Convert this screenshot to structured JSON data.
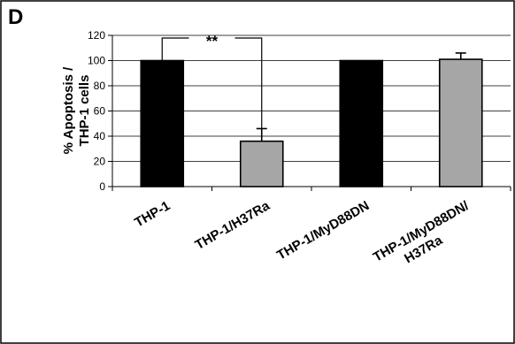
{
  "panel_label": "D",
  "chart_data": {
    "type": "bar",
    "categories": [
      "THP-1",
      "THP-1/H37Ra",
      "THP-1/MyD88DN",
      [
        "THP-1/MyD88DN/",
        "H37Ra"
      ]
    ],
    "values": [
      100,
      36,
      100,
      101
    ],
    "errors": [
      0,
      10,
      0,
      5
    ],
    "bar_colors": [
      "#000000",
      "#a6a6a6",
      "#000000",
      "#a6a6a6"
    ],
    "ylabel_lines": [
      "% Apoptosis /",
      "THP-1 cells"
    ],
    "ylim": [
      0,
      120
    ],
    "yticks": [
      0,
      20,
      40,
      60,
      80,
      100,
      120
    ],
    "grid": true,
    "significance": {
      "from": 0,
      "to": 1,
      "label": "**"
    }
  }
}
